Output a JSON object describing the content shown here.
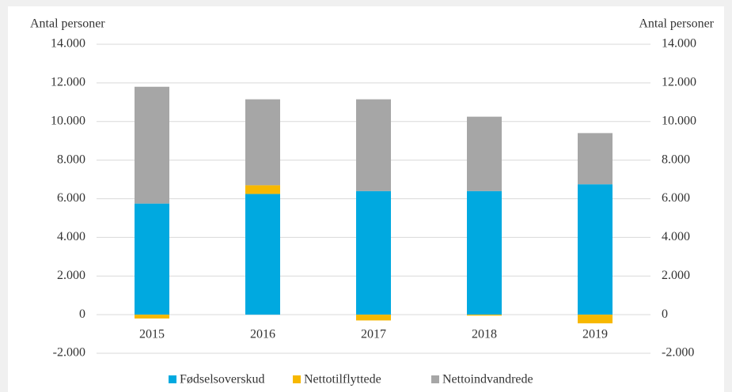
{
  "chart_data": {
    "type": "stacked_bar",
    "y_label": "Antal personer",
    "y2_label": "Antal personer",
    "categories": [
      "2015",
      "2016",
      "2017",
      "2018",
      "2019"
    ],
    "series": [
      {
        "name": "Fødselsoverskud",
        "color": "#00a9e0",
        "values": [
          5750,
          6250,
          6400,
          6400,
          6750
        ]
      },
      {
        "name": "Nettotilflyttede",
        "color": "#f7b800",
        "values": [
          -200,
          450,
          -300,
          -50,
          -450
        ]
      },
      {
        "name": "Nettoindvandrede",
        "color": "#a6a6a6",
        "values": [
          6050,
          4450,
          4750,
          3850,
          2650
        ]
      }
    ],
    "ylim": [
      -2000,
      14000
    ],
    "yticks": [
      {
        "value": -2000,
        "label": "-2.000"
      },
      0,
      {
        "value": 2000,
        "label": "2.000"
      },
      {
        "value": 4000,
        "label": "4.000"
      },
      {
        "value": 6000,
        "label": "6.000"
      },
      {
        "value": 8000,
        "label": "8.000"
      },
      {
        "value": 10000,
        "label": "10.000"
      },
      {
        "value": 12000,
        "label": "12.000"
      },
      {
        "value": 14000,
        "label": "14.000"
      }
    ],
    "y2lim": [
      -2000,
      14000
    ],
    "y2ticks": [
      {
        "value": -2000,
        "label": "-2.000"
      },
      0,
      {
        "value": 2000,
        "label": "2.000"
      },
      {
        "value": 4000,
        "label": "4.000"
      },
      {
        "value": 6000,
        "label": "6.000"
      },
      {
        "value": 8000,
        "label": "8.000"
      },
      {
        "value": 10000,
        "label": "10.000"
      },
      {
        "value": 12000,
        "label": "12.000"
      },
      {
        "value": 14000,
        "label": "14.000"
      }
    ],
    "grid": true,
    "legend": "bottom"
  }
}
